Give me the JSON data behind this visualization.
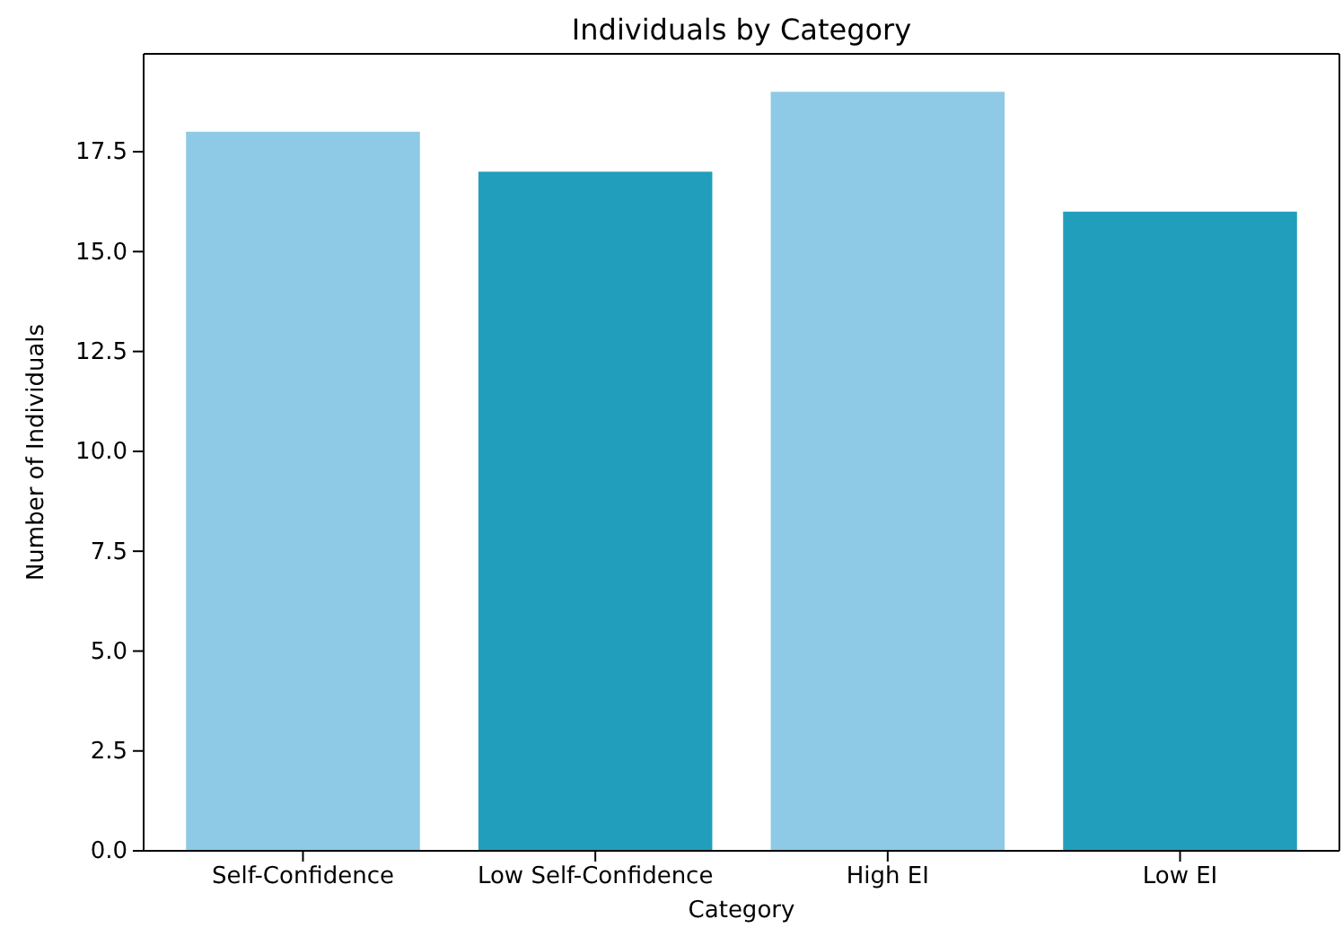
{
  "chart_data": {
    "type": "bar",
    "title": "Individuals by Category",
    "xlabel": "Category",
    "ylabel": "Number of Individuals",
    "categories": [
      "Self-Confidence",
      "Low Self-Confidence",
      "High EI",
      "Low EI"
    ],
    "values": [
      18,
      17,
      19,
      16
    ],
    "colors": [
      "#8ecae6",
      "#219ebc",
      "#8ecae6",
      "#219ebc"
    ],
    "ylim": [
      0,
      19.95
    ],
    "yticks": [
      {
        "value": 0,
        "label": "0.0"
      },
      {
        "value": 2.5,
        "label": "2.5"
      },
      {
        "value": 5,
        "label": "5.0"
      },
      {
        "value": 7.5,
        "label": "7.5"
      },
      {
        "value": 10,
        "label": "10.0"
      },
      {
        "value": 12.5,
        "label": "12.5"
      },
      {
        "value": 15,
        "label": "15.0"
      },
      {
        "value": 17.5,
        "label": "17.5"
      }
    ],
    "grid": false
  }
}
